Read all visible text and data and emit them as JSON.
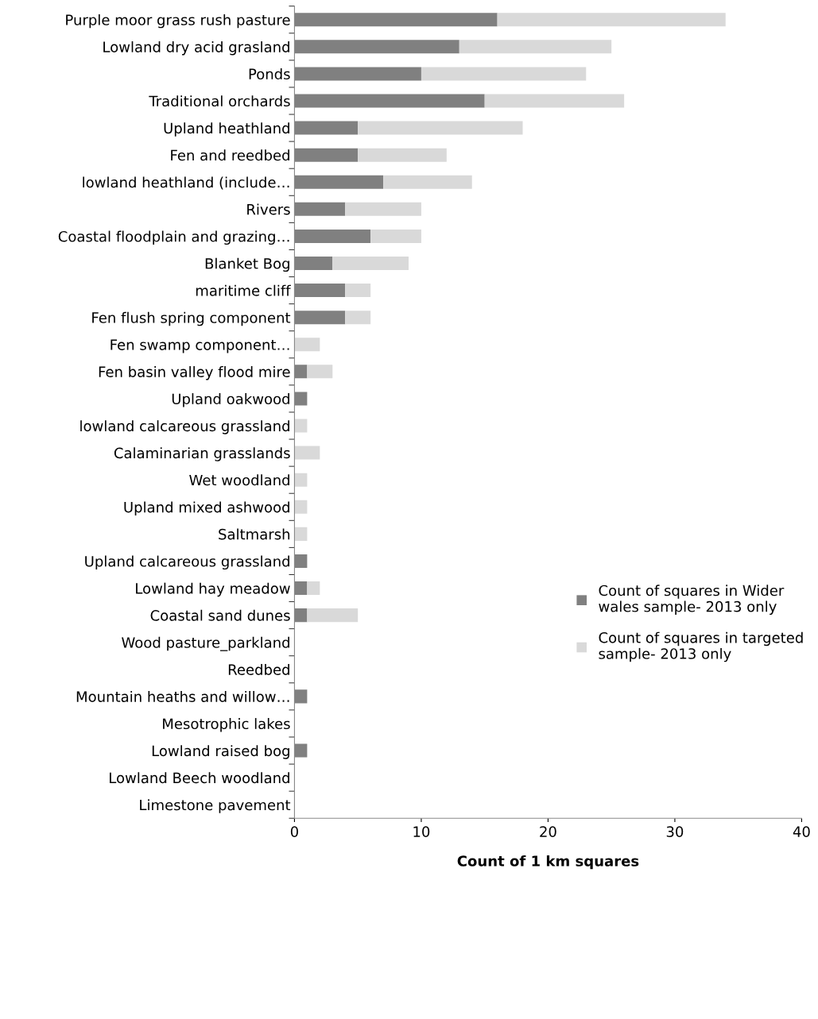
{
  "chart_data": {
    "type": "bar",
    "orientation": "horizontal",
    "stacked": true,
    "categories": [
      "Purple moor grass rush pasture",
      "Lowland dry acid grasland",
      "Ponds",
      "Traditional orchards",
      "Upland heathland",
      "Fen and reedbed",
      "lowland heathland (include…",
      "Rivers",
      "Coastal floodplain and grazing…",
      "Blanket Bog",
      "maritime cliff",
      "Fen flush spring component",
      "Fen swamp component…",
      "Fen basin valley flood mire",
      "Upland oakwood",
      "lowland calcareous grassland",
      "Calaminarian grasslands",
      "Wet woodland",
      "Upland mixed ashwood",
      "Saltmarsh",
      "Upland calcareous grassland",
      "Lowland hay meadow",
      "Coastal sand dunes",
      "Wood pasture_parkland",
      "Reedbed",
      "Mountain heaths and willow…",
      "Mesotrophic lakes",
      "Lowland raised bog",
      "Lowland Beech woodland",
      "Limestone pavement"
    ],
    "series": [
      {
        "name": "Count of squares in Wider\nwales sample- 2013 only",
        "color": "#808080",
        "values": [
          16,
          13,
          10,
          15,
          5,
          5,
          7,
          4,
          6,
          3,
          4,
          4,
          0,
          1,
          1,
          0,
          0,
          0,
          0,
          0,
          1,
          1,
          1,
          0,
          0,
          1,
          0,
          1,
          0,
          0
        ]
      },
      {
        "name": "Count of squares in targeted\nsample- 2013 only",
        "color": "#d9d9d9",
        "values": [
          18,
          12,
          13,
          11,
          13,
          7,
          7,
          6,
          4,
          6,
          2,
          2,
          2,
          2,
          0,
          1,
          2,
          1,
          1,
          1,
          0,
          1,
          4,
          0,
          0,
          0,
          0,
          0,
          0,
          0
        ]
      }
    ],
    "xlim": [
      0,
      40
    ],
    "xticks": [
      0,
      10,
      20,
      30,
      40
    ],
    "xlabel": "Count of 1 km squares",
    "grid": false,
    "legend": "right"
  }
}
